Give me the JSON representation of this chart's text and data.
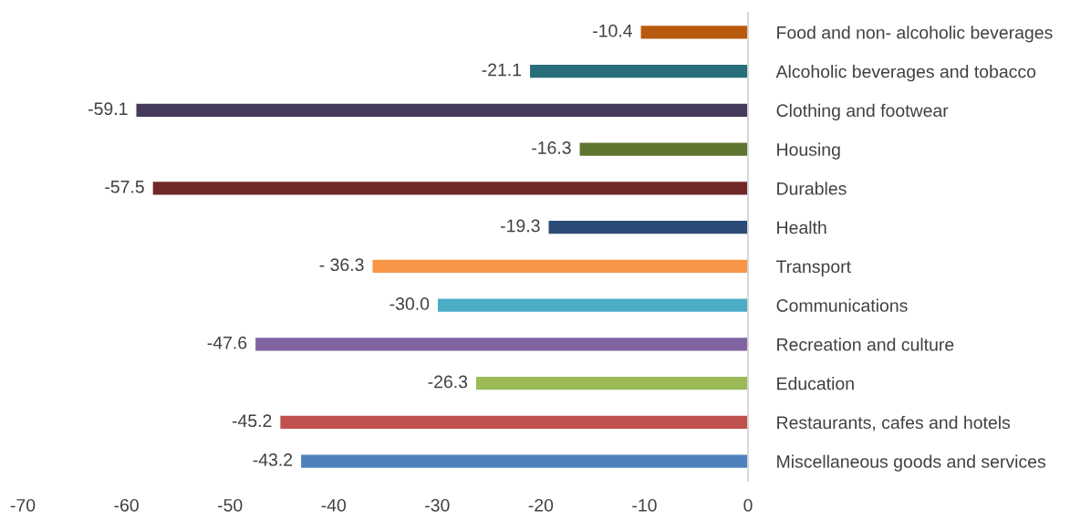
{
  "chart_data": {
    "type": "bar",
    "orientation": "horizontal",
    "categories": [
      "Food and non- alcoholic beverages",
      "Alcoholic beverages and tobacco",
      "Clothing and footwear",
      "Housing",
      "Durables",
      "Health",
      "Transport",
      "Communications",
      "Recreation and culture",
      "Education",
      "Restaurants, cafes and hotels",
      "Miscellaneous goods and services"
    ],
    "values": [
      -10.4,
      -21.1,
      -59.1,
      -16.3,
      -57.5,
      -19.3,
      -36.3,
      -30.0,
      -47.6,
      -26.3,
      -45.2,
      -43.2
    ],
    "value_labels": [
      "-10.4",
      "-21.1",
      "-59.1",
      "-16.3",
      "-57.5",
      "-19.3",
      "- 36.3",
      "-30.0",
      "-47.6",
      "-26.3",
      "-45.2",
      "-43.2"
    ],
    "colors": [
      "#b85a0d",
      "#276e7a",
      "#453a5c",
      "#5e7530",
      "#722828",
      "#2b4a75",
      "#f79646",
      "#4bacc6",
      "#8064a2",
      "#9bbb59",
      "#c0504d",
      "#4f81bd"
    ],
    "xlim": [
      -70,
      0
    ],
    "xticks": [
      -70,
      -60,
      -50,
      -40,
      -30,
      -20,
      -10,
      0
    ],
    "grid": false,
    "legend": false
  }
}
